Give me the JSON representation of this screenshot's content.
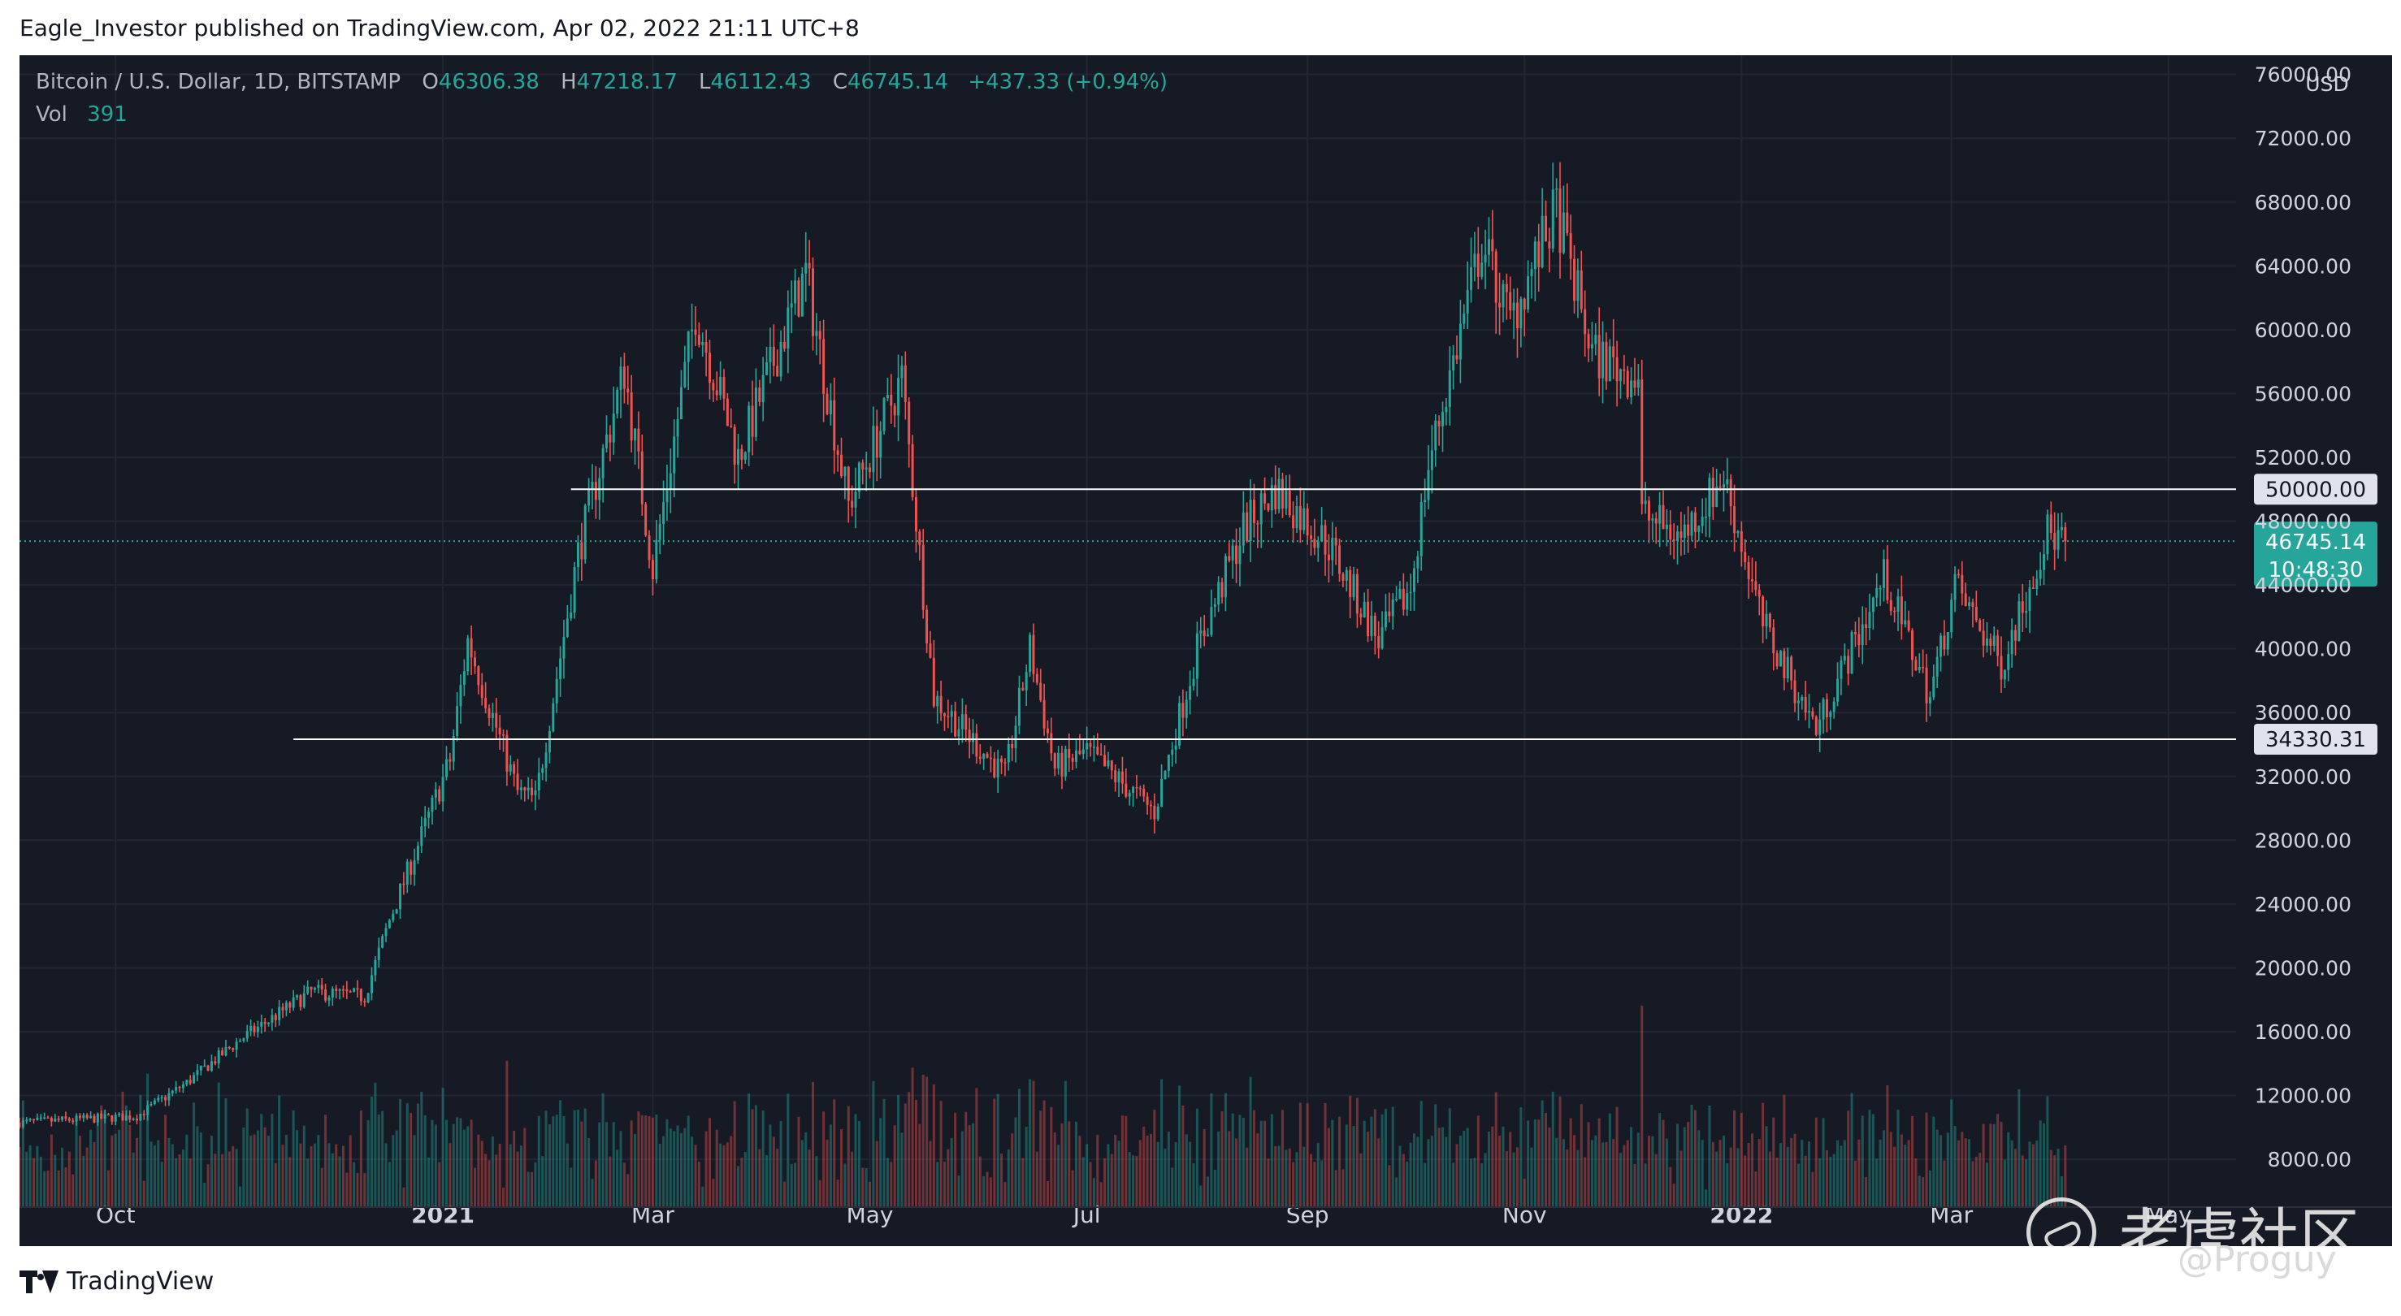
{
  "publisher_line": "Eagle_Investor published on TradingView.com, Apr 02, 2022 21:11 UTC+8",
  "legend": {
    "symbol": "Bitcoin / U.S. Dollar, 1D, BITSTAMP",
    "o_label": "O",
    "o_value": "46306.38",
    "h_label": "H",
    "h_value": "47218.17",
    "l_label": "L",
    "l_value": "46112.43",
    "c_label": "C",
    "c_value": "46745.14",
    "change": "+437.33 (+0.94%)",
    "vol_label": "Vol",
    "vol_value": "391"
  },
  "footer": {
    "brand": "TradingView"
  },
  "watermark": {
    "text": "老虎社区",
    "user": "@Proguy"
  },
  "colors": {
    "background": "#161a25",
    "grid": "#232632",
    "up": "#26a69a",
    "down": "#ef5350",
    "axis_text": "#d1d4dc",
    "hline": "#ffffff",
    "price_badge": "#26a69a"
  },
  "chart_data": {
    "type": "candlestick",
    "title": "",
    "currency_label": "USD",
    "y_ticks": [
      "76000.00",
      "72000.00",
      "68000.00",
      "64000.00",
      "60000.00",
      "56000.00",
      "52000.00",
      "48000.00",
      "44000.00",
      "40000.00",
      "36000.00",
      "32000.00",
      "28000.00",
      "24000.00",
      "20000.00",
      "16000.00",
      "12000.00",
      "8000.00"
    ],
    "ylim": [
      5000,
      77000
    ],
    "x_ticks": [
      "Oct",
      "2021",
      "Mar",
      "May",
      "Jul",
      "Sep",
      "Nov",
      "2022",
      "Mar",
      "May"
    ],
    "x_tick_dates": [
      "2020-10-01",
      "2021-01-01",
      "2021-03-01",
      "2021-05-01",
      "2021-07-01",
      "2021-09-01",
      "2021-11-01",
      "2022-01-01",
      "2022-03-01",
      "2022-05-01"
    ],
    "xlim": [
      "2020-09-04",
      "2022-05-20"
    ],
    "horizontal_lines": [
      {
        "value": 50000,
        "label": "50000.00",
        "start": "2021-02-06"
      },
      {
        "value": 34330.31,
        "label": "34330.31",
        "start": "2020-11-20"
      }
    ],
    "last_price": {
      "value": 46745.14,
      "label": "46745.14",
      "countdown": "10:48:30"
    },
    "anchors": [
      [
        "2020-09-04",
        10300
      ],
      [
        "2020-10-07",
        10700
      ],
      [
        "2020-10-21",
        12800
      ],
      [
        "2020-11-05",
        15500
      ],
      [
        "2020-11-25",
        18500
      ],
      [
        "2020-12-10",
        18200
      ],
      [
        "2020-12-17",
        23000
      ],
      [
        "2021-01-03",
        33000
      ],
      [
        "2021-01-08",
        40500
      ],
      [
        "2021-01-22",
        31000
      ],
      [
        "2021-01-27",
        30500
      ],
      [
        "2021-02-08",
        46000
      ],
      [
        "2021-02-21",
        57500
      ],
      [
        "2021-03-01",
        45000
      ],
      [
        "2021-03-13",
        61200
      ],
      [
        "2021-03-25",
        52000
      ],
      [
        "2021-04-13",
        63500
      ],
      [
        "2021-04-25",
        49000
      ],
      [
        "2021-05-10",
        57000
      ],
      [
        "2021-05-19",
        37000
      ],
      [
        "2021-06-08",
        32000
      ],
      [
        "2021-06-15",
        40000
      ],
      [
        "2021-06-22",
        32500
      ],
      [
        "2021-07-01",
        33500
      ],
      [
        "2021-07-20",
        29800
      ],
      [
        "2021-08-01",
        40000
      ],
      [
        "2021-08-14",
        47500
      ],
      [
        "2021-08-23",
        50000
      ],
      [
        "2021-09-07",
        46500
      ],
      [
        "2021-09-21",
        40500
      ],
      [
        "2021-09-30",
        43800
      ],
      [
        "2021-10-05",
        51500
      ],
      [
        "2021-10-20",
        65500
      ],
      [
        "2021-10-28",
        60500
      ],
      [
        "2021-11-10",
        67500
      ],
      [
        "2021-11-20",
        58500
      ],
      [
        "2021-12-03",
        57000
      ],
      [
        "2021-12-04",
        48500
      ],
      [
        "2021-12-15",
        47000
      ],
      [
        "2021-12-27",
        50800
      ],
      [
        "2022-01-07",
        41500
      ],
      [
        "2022-01-22",
        35000
      ],
      [
        "2022-02-10",
        44500
      ],
      [
        "2022-02-23",
        37000
      ],
      [
        "2022-03-02",
        44000
      ],
      [
        "2022-03-15",
        39000
      ],
      [
        "2022-03-28",
        47300
      ],
      [
        "2022-04-02",
        46745
      ]
    ]
  }
}
